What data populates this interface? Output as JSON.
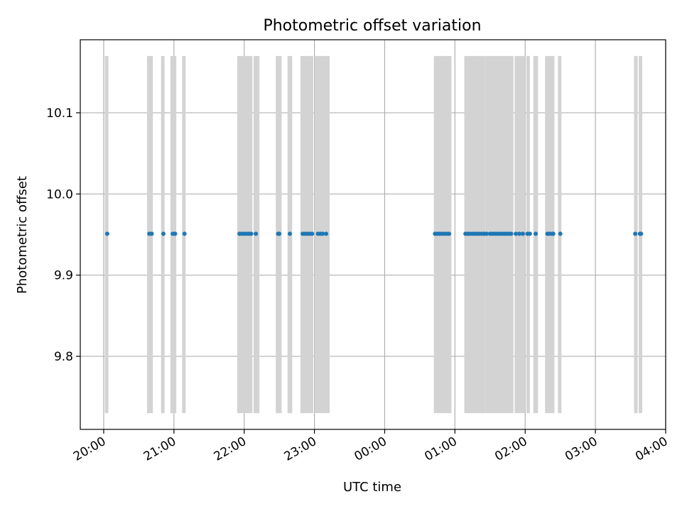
{
  "chart_data": {
    "type": "scatter",
    "title": "Photometric offset variation",
    "xlabel": "UTC time",
    "ylabel": "Photometric offset",
    "x_ticks": [
      "20:00",
      "21:00",
      "22:00",
      "23:00",
      "00:00",
      "01:00",
      "02:00",
      "03:00",
      "04:00"
    ],
    "y_ticks": [
      "9.8",
      "9.9",
      "10.0",
      "10.1"
    ],
    "xlim": [
      "19:40",
      "04:00"
    ],
    "ylim": [
      9.71,
      10.19
    ],
    "grid": true,
    "span_range": [
      9.73,
      10.17
    ],
    "colors": {
      "points": "#1f77b4",
      "spans": "#d3d3d3",
      "grid": "#b0b0b0"
    },
    "spans": [
      [
        "20:01",
        "20:04"
      ],
      [
        "20:37",
        "20:42"
      ],
      [
        "20:49",
        "20:52"
      ],
      [
        "20:57",
        "21:02"
      ],
      [
        "21:07",
        "21:10"
      ],
      [
        "21:54",
        "22:07"
      ],
      [
        "22:08",
        "22:13"
      ],
      [
        "22:27",
        "22:32"
      ],
      [
        "22:37",
        "22:41"
      ],
      [
        "22:48",
        "22:59"
      ],
      [
        "23:00",
        "23:13"
      ],
      [
        "00:42",
        "00:57"
      ],
      [
        "01:08",
        "01:26"
      ],
      [
        "01:26",
        "01:50"
      ],
      [
        "01:51",
        "02:00"
      ],
      [
        "02:01",
        "02:04"
      ],
      [
        "02:07",
        "02:11"
      ],
      [
        "02:17",
        "02:25"
      ],
      [
        "02:28",
        "02:31"
      ],
      [
        "03:33",
        "03:36"
      ],
      [
        "03:37",
        "03:40"
      ]
    ],
    "points": {
      "y": 9.951,
      "x": [
        "20:03",
        "20:39",
        "20:41",
        "20:51",
        "20:59",
        "21:01",
        "21:09",
        "21:56",
        "21:58",
        "22:00",
        "22:02",
        "22:04",
        "22:06",
        "22:10",
        "22:29",
        "22:30",
        "22:39",
        "22:50",
        "22:52",
        "22:54",
        "22:56",
        "22:58",
        "23:03",
        "23:05",
        "23:07",
        "23:10",
        "00:43",
        "00:45",
        "00:47",
        "00:49",
        "00:51",
        "00:53",
        "00:55",
        "01:09",
        "01:11",
        "01:13",
        "01:15",
        "01:17",
        "01:19",
        "01:21",
        "01:23",
        "01:25",
        "01:27",
        "01:30",
        "01:32",
        "01:34",
        "01:36",
        "01:38",
        "01:40",
        "01:42",
        "01:44",
        "01:46",
        "01:48",
        "01:52",
        "01:55",
        "01:58",
        "02:02",
        "02:04",
        "02:09",
        "02:19",
        "02:21",
        "02:23",
        "02:24",
        "02:30",
        "03:34",
        "03:38",
        "03:39"
      ]
    }
  }
}
